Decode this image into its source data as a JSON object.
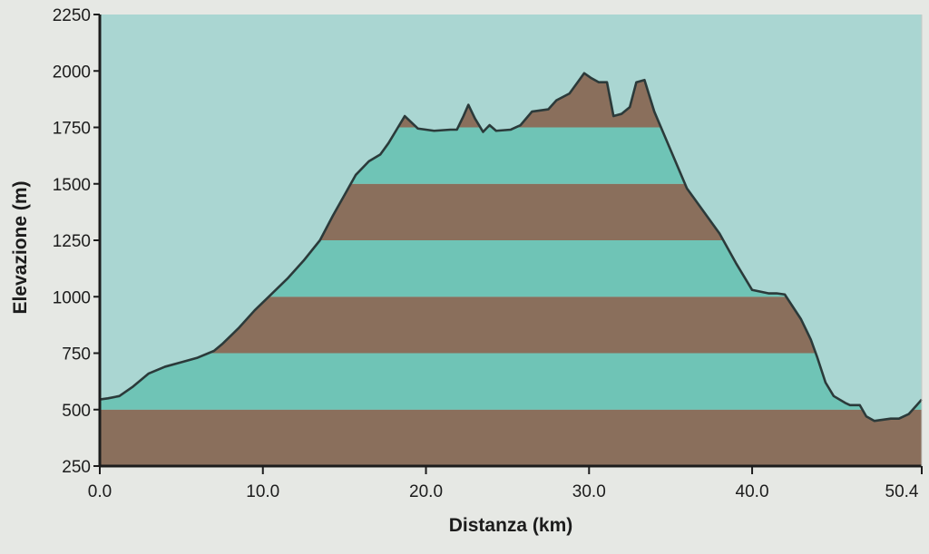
{
  "chart_data": {
    "type": "area",
    "title": "",
    "xlabel": "Distanza  (km)",
    "ylabel": "Elevazione  (m)",
    "xlim": [
      0,
      50.4
    ],
    "ylim": [
      250,
      2250
    ],
    "x_ticks": [
      "0.0",
      "10.0",
      "20.0",
      "30.0",
      "40.0",
      "50.4"
    ],
    "x_tick_values": [
      0,
      10,
      20,
      30,
      40,
      50.4
    ],
    "y_ticks": [
      "250",
      "500",
      "750",
      "1000",
      "1250",
      "1500",
      "1750",
      "2000",
      "2250"
    ],
    "y_tick_values": [
      250,
      500,
      750,
      1000,
      1250,
      1500,
      1750,
      2000,
      2250
    ],
    "grid": false,
    "colors": {
      "sky": "#aad6d2",
      "band_brown": "#8a6f5c",
      "band_teal": "#6fc4b6",
      "profile_line": "#2b3a3a",
      "axis": "#1c1c1c",
      "frame": "#c8cac6"
    },
    "bands": [
      {
        "from": 250,
        "to": 500,
        "color": "band_brown"
      },
      {
        "from": 500,
        "to": 750,
        "color": "band_teal"
      },
      {
        "from": 750,
        "to": 1000,
        "color": "band_brown"
      },
      {
        "from": 1000,
        "to": 1250,
        "color": "band_teal"
      },
      {
        "from": 1250,
        "to": 1500,
        "color": "band_brown"
      },
      {
        "from": 1500,
        "to": 1750,
        "color": "band_teal"
      },
      {
        "from": 1750,
        "to": 2250,
        "color": "band_brown"
      }
    ],
    "series": [
      {
        "x": [
          0,
          0.5,
          1.2,
          2,
          3,
          4,
          5,
          6,
          7,
          7.5,
          8.5,
          9.5,
          10.5,
          11.5,
          12.5,
          13.5,
          14.3,
          15,
          15.7,
          16.5,
          17.2,
          17.7,
          18.2,
          18.7,
          19.5,
          20.5,
          21.5,
          21.9,
          22.3,
          22.6,
          23,
          23.5,
          23.9,
          24.3,
          25.2,
          25.8,
          26.5,
          27.5,
          28,
          28.8,
          29.3,
          29.7,
          30.1,
          30.6,
          31.1,
          31.5,
          32,
          32.5,
          32.9,
          33.4,
          34,
          35,
          36,
          37,
          38,
          39,
          40,
          41,
          41.5,
          42,
          43,
          43.6,
          44,
          44.5,
          45,
          45.7,
          46,
          46.6,
          47,
          47.5,
          48,
          48.5,
          49,
          49.6,
          50.1,
          50.4
        ],
        "y": [
          545,
          550,
          560,
          600,
          660,
          690,
          710,
          730,
          760,
          790,
          860,
          940,
          1010,
          1080,
          1160,
          1250,
          1360,
          1450,
          1540,
          1600,
          1630,
          1680,
          1740,
          1800,
          1745,
          1735,
          1740,
          1740,
          1800,
          1850,
          1790,
          1730,
          1760,
          1735,
          1740,
          1760,
          1820,
          1830,
          1870,
          1900,
          1950,
          1990,
          1970,
          1950,
          1950,
          1800,
          1810,
          1840,
          1950,
          1960,
          1820,
          1650,
          1480,
          1380,
          1280,
          1150,
          1030,
          1015,
          1015,
          1010,
          900,
          810,
          730,
          620,
          560,
          530,
          520,
          520,
          470,
          450,
          455,
          460,
          460,
          480,
          520,
          545
        ]
      }
    ]
  }
}
